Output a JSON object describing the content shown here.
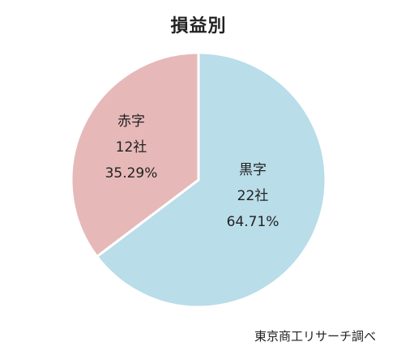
{
  "chart_data": {
    "type": "pie",
    "title": "損益別",
    "slices": [
      {
        "name": "黒字",
        "count_label": "22社",
        "percent_label": "64.71%",
        "value": 64.71,
        "color": "#b9dde9"
      },
      {
        "name": "赤字",
        "count_label": "12社",
        "percent_label": "35.29%",
        "value": 35.29,
        "color": "#e6b9b8"
      }
    ]
  },
  "source": "東京商工リサーチ調べ"
}
